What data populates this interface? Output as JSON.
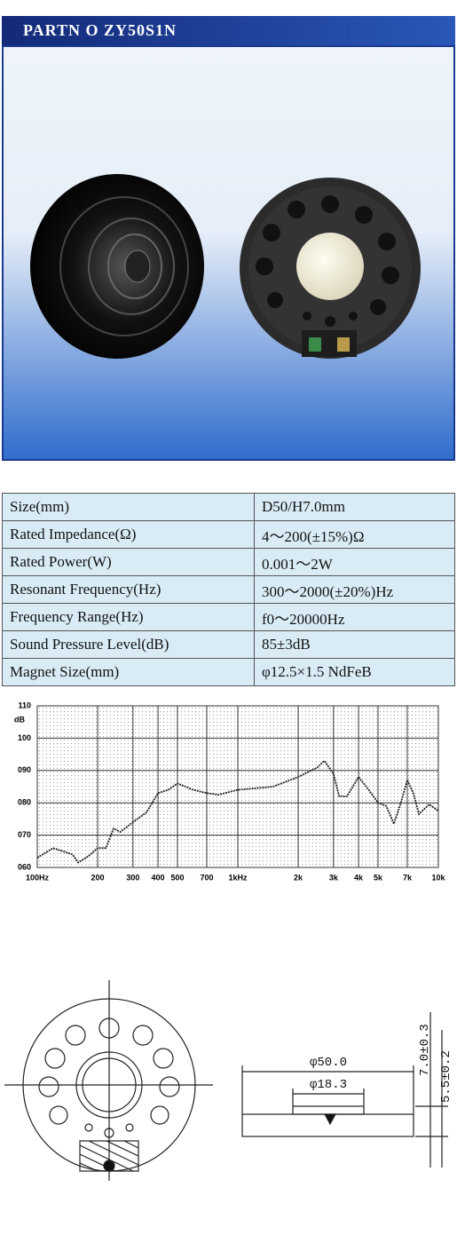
{
  "header": {
    "title": "PARTN O ZY50S1N"
  },
  "specs": {
    "rows": [
      [
        "Size(mm)",
        "D50/H7.0mm"
      ],
      [
        "Rated Impedance(Ω)",
        "4～200(±15%)Ω"
      ],
      [
        "Rated Power(W)",
        "0.001～2W"
      ],
      [
        "Resonant Frequency(Hz)",
        "300～2000(±20%)Hz"
      ],
      [
        "Frequency Range(Hz)",
        "f0～20000Hz"
      ],
      [
        "Sound Pressure Level(dB)",
        "85±3dB"
      ],
      [
        "Magnet Size(mm)",
        "φ12.5×1.5 NdFeB"
      ]
    ]
  },
  "chart_data": {
    "type": "line",
    "y_label": "dB",
    "xscale": "log",
    "grid": true,
    "x": [
      100,
      120,
      150,
      160,
      180,
      200,
      220,
      240,
      260,
      300,
      350,
      400,
      450,
      500,
      600,
      700,
      800,
      1000,
      1500,
      2000,
      2500,
      2700,
      3000,
      3200,
      3500,
      4000,
      4500,
      5000,
      5500,
      6000,
      6500,
      7000,
      7500,
      8000,
      9000,
      10000
    ],
    "series": [
      {
        "name": "SPL",
        "color": "#222222",
        "values": [
          63,
          66,
          64,
          61.5,
          63.5,
          66,
          66,
          72,
          71,
          74,
          77,
          83,
          84,
          86,
          84,
          83,
          82.5,
          84,
          85,
          88,
          91,
          93,
          89,
          82,
          82,
          88,
          84,
          80,
          79,
          73.5,
          80,
          87,
          83,
          76.5,
          79.5,
          77.5
        ]
      }
    ],
    "xlim": [
      100,
      10000
    ],
    "xticks": [
      {
        "value": 100,
        "label": "100Hz"
      },
      200,
      300,
      400,
      500,
      700,
      {
        "value": 1000,
        "label": "1kHz"
      },
      {
        "value": 2000,
        "label": "2k"
      },
      {
        "value": 3000,
        "label": "3k"
      },
      {
        "value": 4000,
        "label": "4k"
      },
      {
        "value": 5000,
        "label": "5k"
      },
      {
        "value": 7000,
        "label": "7k"
      },
      {
        "value": 10000,
        "label": "10k"
      }
    ],
    "ylim": [
      60,
      110
    ],
    "yticks": [
      {
        "value": 60,
        "label": "060"
      },
      {
        "value": 70,
        "label": "070"
      },
      {
        "value": 80,
        "label": "080"
      },
      {
        "value": 90,
        "label": "090"
      },
      100,
      110
    ]
  },
  "drawing": {
    "labels": [
      "φ50.0",
      "φ18.3",
      "7.0±0.3",
      "5.5±0.2"
    ]
  }
}
